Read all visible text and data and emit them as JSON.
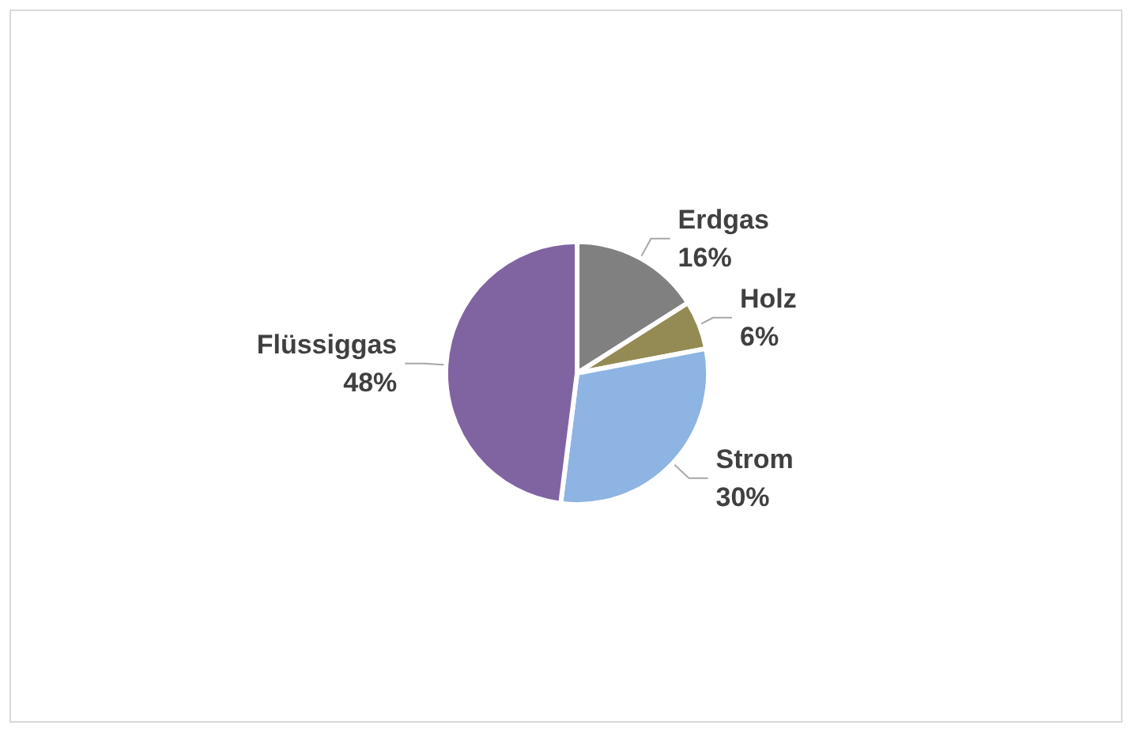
{
  "chart_data": {
    "type": "pie",
    "categories": [
      "Erdgas",
      "Holz",
      "Strom",
      "Flüssiggas"
    ],
    "values": [
      16,
      6,
      30,
      48
    ],
    "colors": [
      "#808080",
      "#948a54",
      "#8db4e2",
      "#8064a2"
    ],
    "value_labels": [
      "16%",
      "6%",
      "30%",
      "48%"
    ],
    "legend": false
  }
}
